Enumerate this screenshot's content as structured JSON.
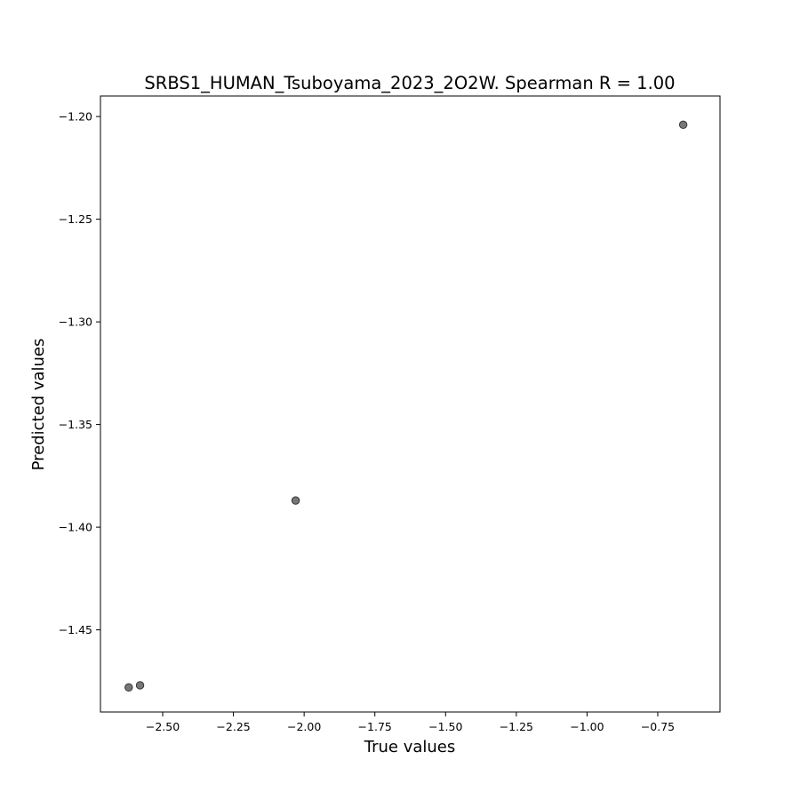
{
  "chart_data": {
    "type": "scatter",
    "title": "SRBS1_HUMAN_Tsuboyama_2023_2O2W. Spearman R = 1.00",
    "xlabel": "True values",
    "ylabel": "Predicted values",
    "xlim": [
      -2.72,
      -0.53
    ],
    "ylim": [
      -1.49,
      -1.19
    ],
    "xticks": [
      -2.5,
      -2.25,
      -2.0,
      -1.75,
      -1.5,
      -1.25,
      -1.0,
      -0.75
    ],
    "xtick_labels": [
      "−2.50",
      "−2.25",
      "−2.00",
      "−1.75",
      "−1.50",
      "−1.25",
      "−1.00",
      "−0.75"
    ],
    "yticks": [
      -1.2,
      -1.25,
      -1.3,
      -1.35,
      -1.4,
      -1.45
    ],
    "ytick_labels": [
      "−1.20",
      "−1.25",
      "−1.30",
      "−1.35",
      "−1.40",
      "−1.45"
    ],
    "grid": false,
    "marker_color": "#555555",
    "points": [
      {
        "x": -2.62,
        "y": -1.478
      },
      {
        "x": -2.58,
        "y": -1.477
      },
      {
        "x": -2.03,
        "y": -1.387
      },
      {
        "x": -0.66,
        "y": -1.204
      }
    ]
  }
}
